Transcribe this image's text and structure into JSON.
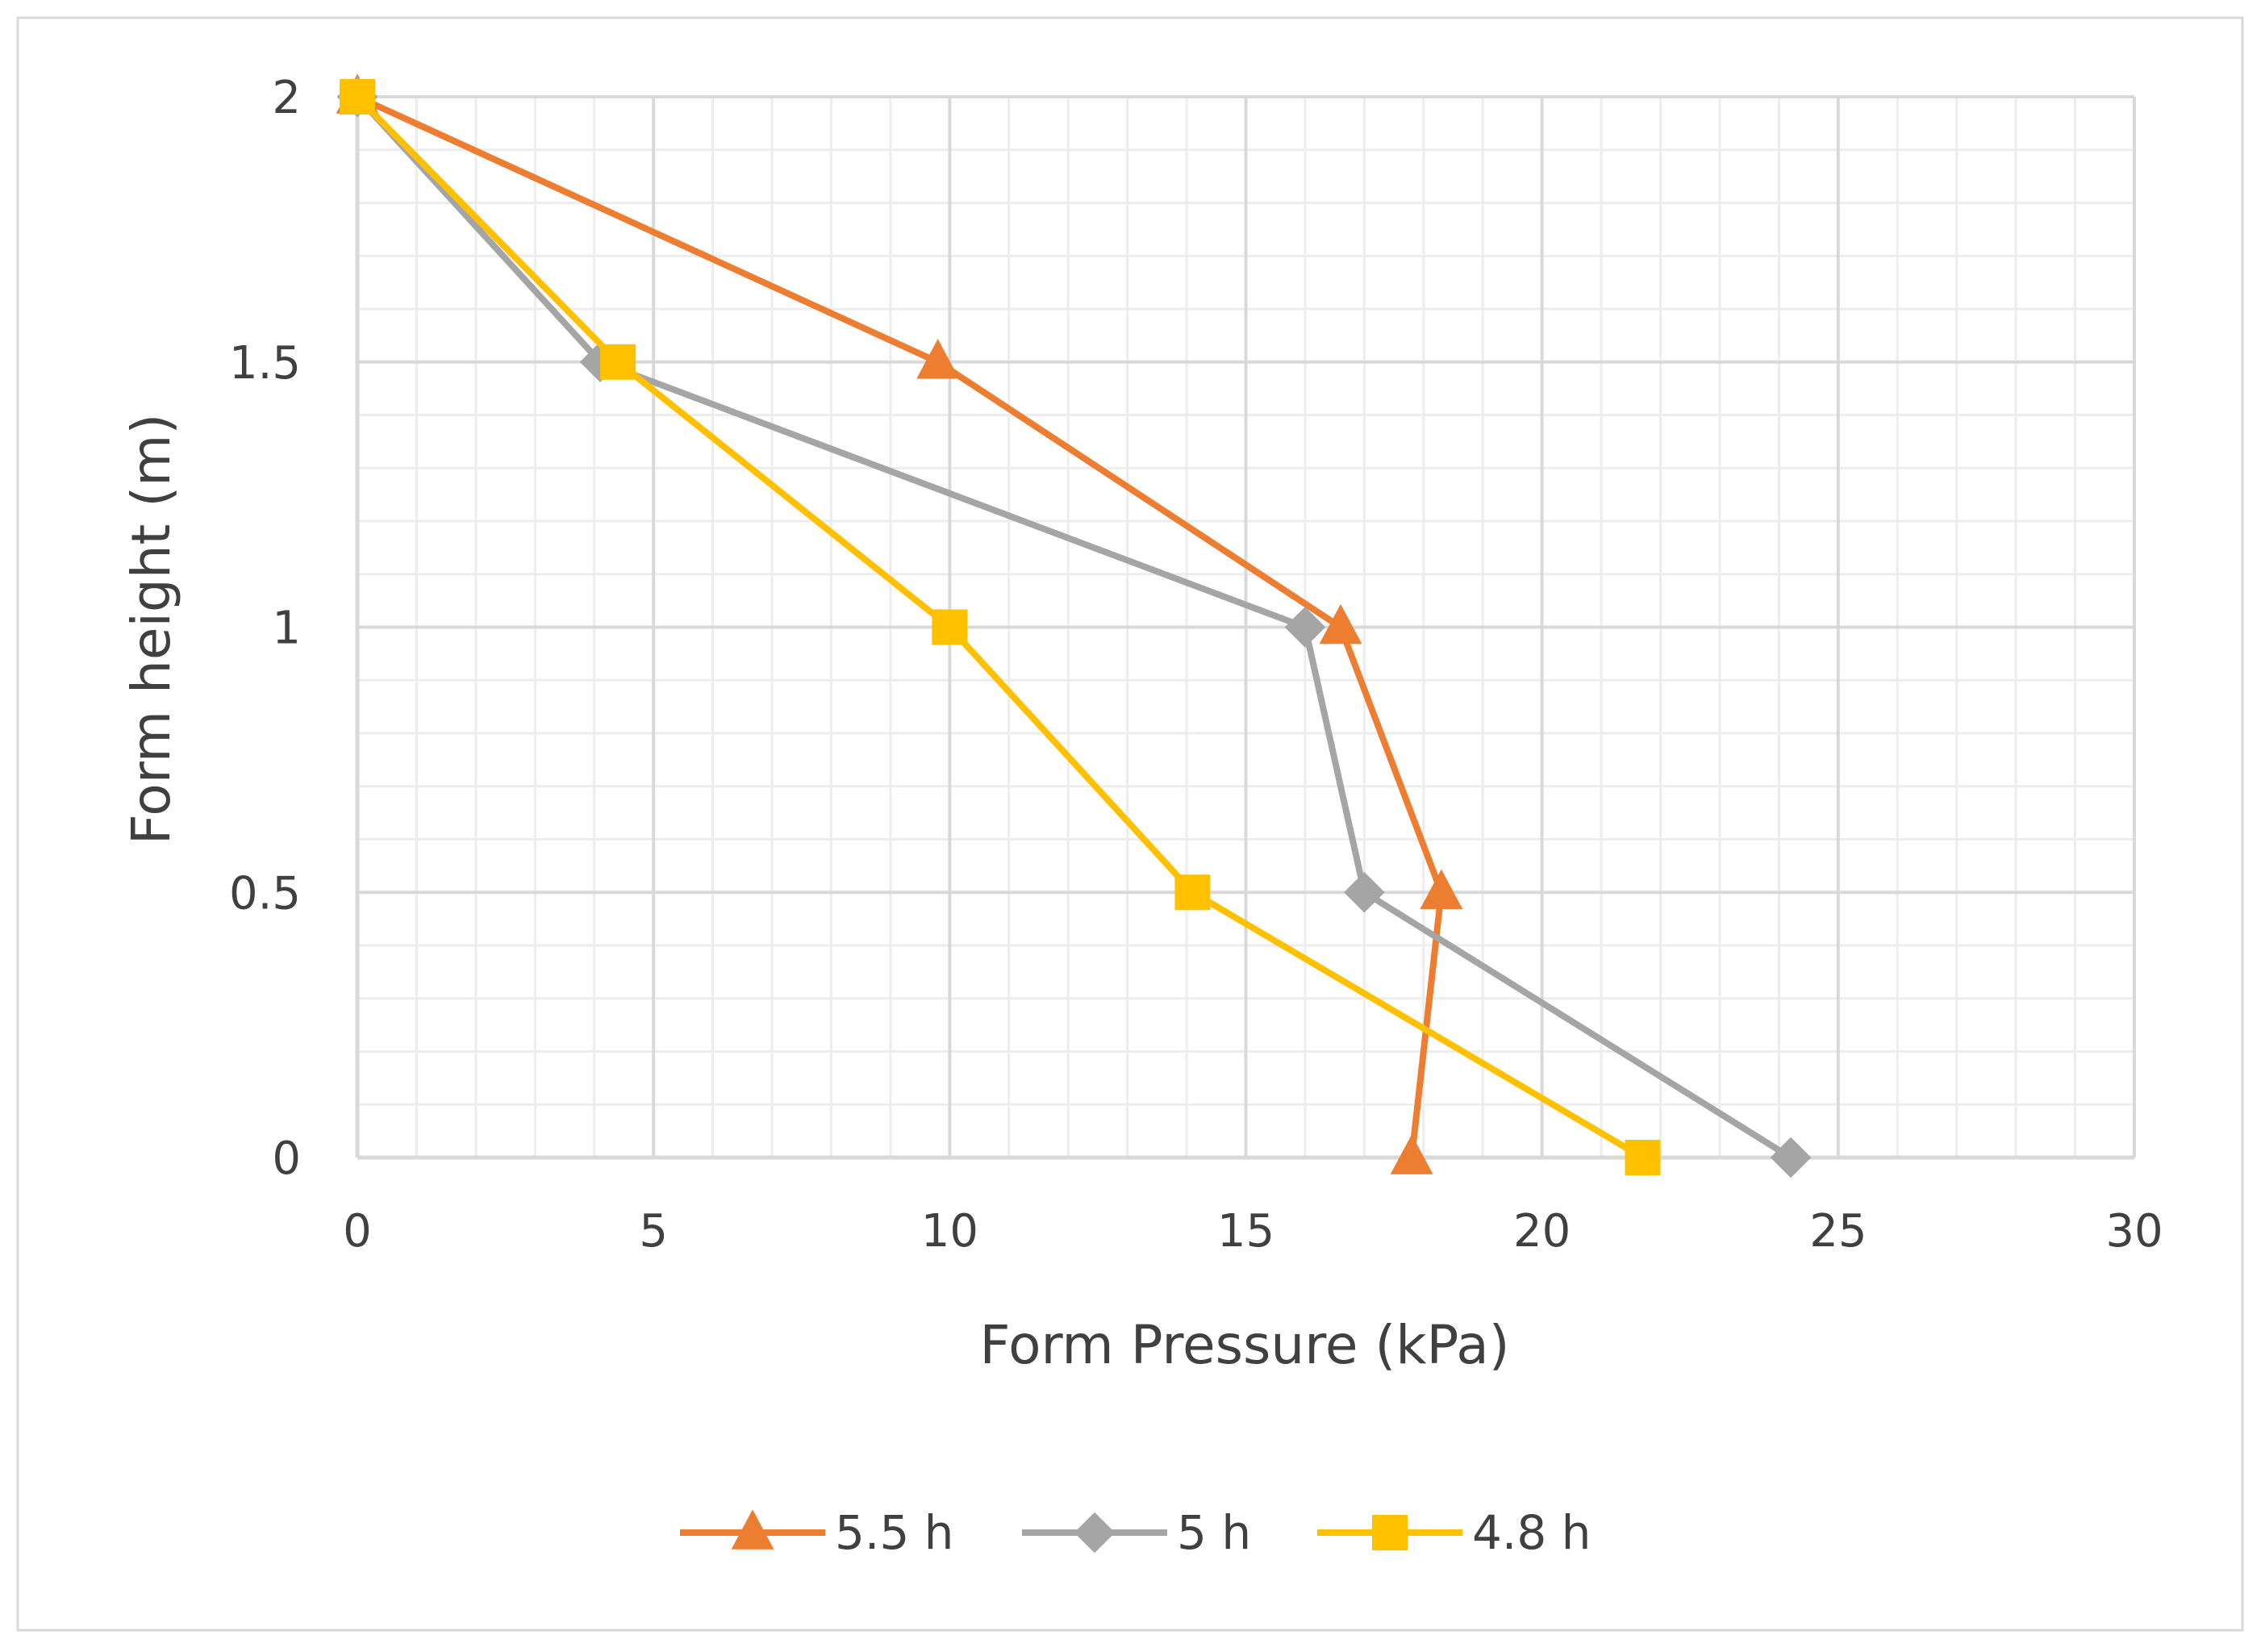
{
  "chart_data": {
    "type": "line",
    "title": "",
    "xlabel": "Form Pressure (kPa)",
    "ylabel": "Form height (m)",
    "xlim": [
      0,
      30
    ],
    "ylim": [
      0,
      2
    ],
    "x_ticks": [
      "0",
      "5",
      "10",
      "15",
      "20",
      "25",
      "30"
    ],
    "y_ticks": [
      "0",
      "0.5",
      "1",
      "1.5",
      "2"
    ],
    "grid": true,
    "legend_position": "bottom",
    "series": [
      {
        "name": "5.5 h",
        "marker": "triangle",
        "color": "#ED7D31",
        "points": [
          {
            "x": 0,
            "y": 2
          },
          {
            "x": 9.8,
            "y": 1.5
          },
          {
            "x": 16.6,
            "y": 1.0
          },
          {
            "x": 18.3,
            "y": 0.5
          },
          {
            "x": 17.8,
            "y": 0
          }
        ]
      },
      {
        "name": "5 h",
        "marker": "diamond",
        "color": "#A5A5A5",
        "points": [
          {
            "x": 0,
            "y": 2
          },
          {
            "x": 4.1,
            "y": 1.5
          },
          {
            "x": 16.0,
            "y": 1.0
          },
          {
            "x": 17.0,
            "y": 0.5
          },
          {
            "x": 24.2,
            "y": 0
          }
        ]
      },
      {
        "name": "4.8 h",
        "marker": "square",
        "color": "#FFC000",
        "points": [
          {
            "x": 0,
            "y": 2
          },
          {
            "x": 4.4,
            "y": 1.5
          },
          {
            "x": 10.0,
            "y": 1.0
          },
          {
            "x": 14.1,
            "y": 0.5
          },
          {
            "x": 21.7,
            "y": 0
          }
        ]
      }
    ]
  }
}
